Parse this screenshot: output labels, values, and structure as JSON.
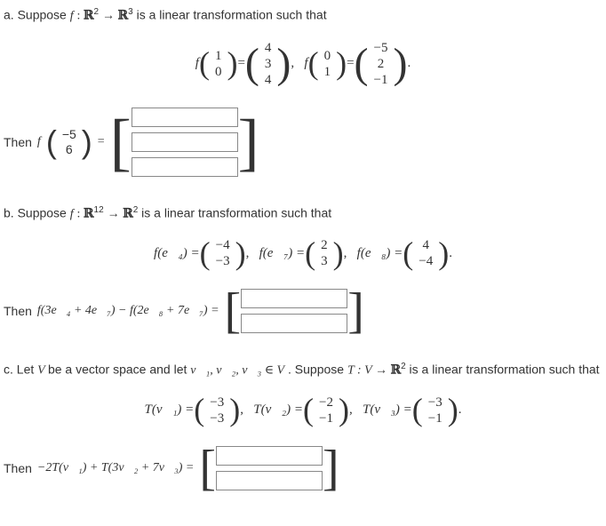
{
  "partA": {
    "label": "a. Suppose",
    "func": "f",
    "domain_sup": "2",
    "codomain_sup": "3",
    "tail": "is a linear transformation such that",
    "eq1_in": [
      "1",
      "0"
    ],
    "eq1_out": [
      "4",
      "3",
      "4"
    ],
    "eq2_in": [
      "0",
      "1"
    ],
    "eq2_out": [
      "−5",
      "2",
      "−1"
    ],
    "then_text": "Then",
    "then_vec": [
      "−5",
      "6"
    ]
  },
  "partB": {
    "label": "b. Suppose",
    "func": "f",
    "domain_sup": "12",
    "codomain_sup": "2",
    "tail": "is a linear transformation such that",
    "e4": "f(e⃗₄) =",
    "e4v": [
      "−4",
      "−3"
    ],
    "e7": "f(e⃗₇) =",
    "e7v": [
      "2",
      "3"
    ],
    "e8": "f(e⃗₈) =",
    "e8v": [
      "4",
      "−4"
    ],
    "then_text": "Then",
    "then_expr": "f(3e⃗₄ + 4e⃗₇) − f(2e⃗₈ + 7e⃗₇) ="
  },
  "partC": {
    "label": "c. Let",
    "v_text": "be a vector space and let",
    "vecs": "v⃗₁, v⃗₂, v⃗₃ ∈ V",
    "suppose": ". Suppose",
    "tmap": "T : V → ",
    "codomain_sup": "2",
    "tail": "is a linear transformation such that",
    "t1": "T(v⃗₁) =",
    "t1v": [
      "−3",
      "−3"
    ],
    "t2": "T(v⃗₂) =",
    "t2v": [
      "−2",
      "−1"
    ],
    "t3": "T(v⃗₃) =",
    "t3v": [
      "−3",
      "−1"
    ],
    "then_text": "Then",
    "then_expr": "−2T(v⃗₁) + T(3v⃗₂ + 7v⃗₃) ="
  }
}
